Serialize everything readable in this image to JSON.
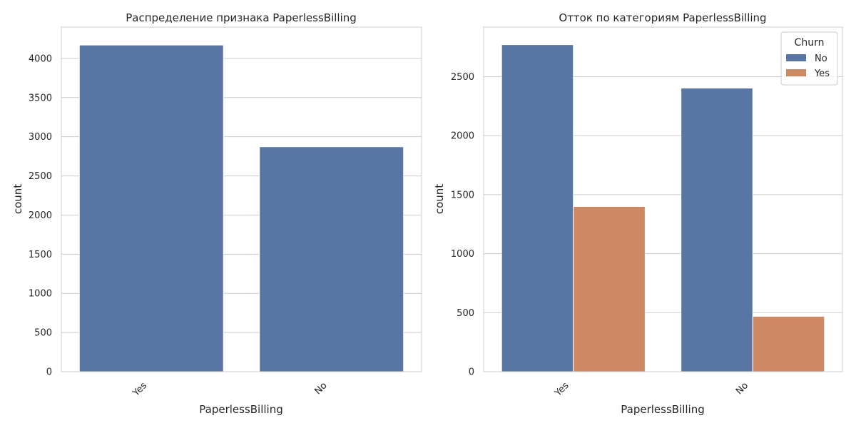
{
  "colors": {
    "no": "#5875a4",
    "yes": "#cc8963",
    "grid": "#cccccc",
    "spine": "#cccccc",
    "text": "#262626",
    "background": "#ffffff"
  },
  "chart_data": [
    {
      "type": "bar",
      "title": "Распределение признака PaperlessBilling",
      "xlabel": "PaperlessBilling",
      "ylabel": "count",
      "categories": [
        "Yes",
        "No"
      ],
      "values": [
        4171,
        2872
      ],
      "ylim": [
        0,
        4400
      ],
      "yticks": [
        0,
        500,
        1000,
        1500,
        2000,
        2500,
        3000,
        3500,
        4000
      ],
      "grid": true,
      "series": [
        {
          "name": "",
          "values": [
            4171,
            2872
          ]
        }
      ]
    },
    {
      "type": "bar",
      "title": "Отток по категориям PaperlessBilling",
      "xlabel": "PaperlessBilling",
      "ylabel": "count",
      "categories": [
        "Yes",
        "No"
      ],
      "ylim": [
        0,
        2920
      ],
      "yticks": [
        0,
        500,
        1000,
        1500,
        2000,
        2500
      ],
      "grid": true,
      "legend": {
        "title": "Churn",
        "position": "top-right"
      },
      "series": [
        {
          "name": "No",
          "values": [
            2771,
            2403
          ]
        },
        {
          "name": "Yes",
          "values": [
            1400,
            469
          ]
        }
      ]
    }
  ]
}
